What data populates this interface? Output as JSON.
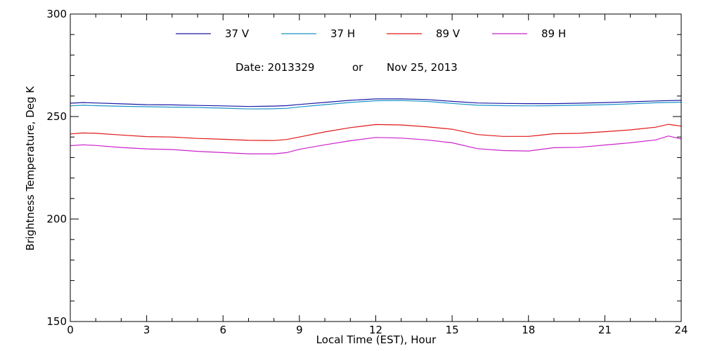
{
  "chart_data": {
    "type": "line",
    "title": "",
    "date_note": {
      "prefix": "Date: 2013329",
      "connector": "or",
      "date": "Nov 25, 2013"
    },
    "xlabel": "Local Time (EST), Hour",
    "ylabel": "Brightness Temperature, Deg K",
    "xlim": [
      0,
      24
    ],
    "ylim": [
      150,
      300
    ],
    "x_ticks": [
      0,
      3,
      6,
      9,
      12,
      15,
      18,
      21,
      24
    ],
    "x_tick_labels": [
      "0",
      "3",
      "6",
      "9",
      "12",
      "15",
      "18",
      "21",
      "24"
    ],
    "x_minor_step": 1,
    "y_ticks": [
      150,
      200,
      250,
      300
    ],
    "y_tick_labels": [
      "150",
      "200",
      "250",
      "300"
    ],
    "y_minor_step": 10,
    "grid": false,
    "legend_position": "top",
    "series": [
      {
        "name": "37 V",
        "color": "#1a1aa6",
        "x": [
          0,
          0.5,
          1,
          2,
          3,
          4,
          5,
          6,
          7,
          8,
          8.5,
          9,
          10,
          11,
          12,
          13,
          14,
          15,
          16,
          17,
          18,
          19,
          20,
          21,
          22,
          23,
          24
        ],
        "y": [
          256.5,
          256.8,
          256.6,
          256.2,
          255.8,
          255.7,
          255.4,
          255.2,
          254.9,
          255.1,
          255.3,
          255.9,
          256.9,
          257.9,
          258.6,
          258.6,
          258.3,
          257.4,
          256.6,
          256.4,
          256.3,
          256.3,
          256.5,
          256.8,
          257.2,
          257.6,
          257.9
        ]
      },
      {
        "name": "37 H",
        "color": "#1a95c8",
        "x": [
          0,
          0.5,
          1,
          2,
          3,
          4,
          5,
          6,
          7,
          8,
          8.5,
          9,
          10,
          11,
          12,
          13,
          14,
          15,
          16,
          17,
          18,
          19,
          20,
          21,
          22,
          23,
          24
        ],
        "y": [
          255.2,
          255.5,
          255.3,
          255.0,
          254.8,
          254.6,
          254.4,
          254.1,
          253.7,
          253.8,
          254.0,
          254.7,
          255.8,
          256.9,
          257.7,
          257.8,
          257.4,
          256.4,
          255.5,
          255.3,
          255.2,
          255.3,
          255.5,
          255.8,
          256.2,
          256.7,
          257.0
        ]
      },
      {
        "name": "89 V",
        "color": "#e01818",
        "x": [
          0,
          0.5,
          1,
          2,
          3,
          4,
          5,
          6,
          7,
          8,
          8.5,
          9,
          10,
          11,
          12,
          13,
          14,
          15,
          16,
          17,
          18,
          19,
          20,
          21,
          22,
          23,
          23.5,
          24
        ],
        "y": [
          241.5,
          242.0,
          241.8,
          241.0,
          240.2,
          240.0,
          239.3,
          238.9,
          238.4,
          238.3,
          238.8,
          240.0,
          242.5,
          244.6,
          246.1,
          245.9,
          245.0,
          243.8,
          241.2,
          240.3,
          240.3,
          241.6,
          241.8,
          242.6,
          243.5,
          244.8,
          246.2,
          245.3
        ]
      },
      {
        "name": "89 H",
        "color": "#cc22cc",
        "x": [
          0,
          0.5,
          1,
          2,
          3,
          4,
          5,
          6,
          7,
          8,
          8.5,
          9,
          10,
          11,
          12,
          13,
          14,
          15,
          16,
          17,
          18,
          19,
          20,
          21,
          22,
          23,
          23.5,
          24
        ],
        "y": [
          235.8,
          236.2,
          235.9,
          234.9,
          234.2,
          233.9,
          233.0,
          232.4,
          231.8,
          231.8,
          232.4,
          234.0,
          236.2,
          238.2,
          239.8,
          239.5,
          238.6,
          237.2,
          234.3,
          233.4,
          233.2,
          234.8,
          235.0,
          236.1,
          237.2,
          238.6,
          240.5,
          239.0
        ]
      }
    ]
  }
}
